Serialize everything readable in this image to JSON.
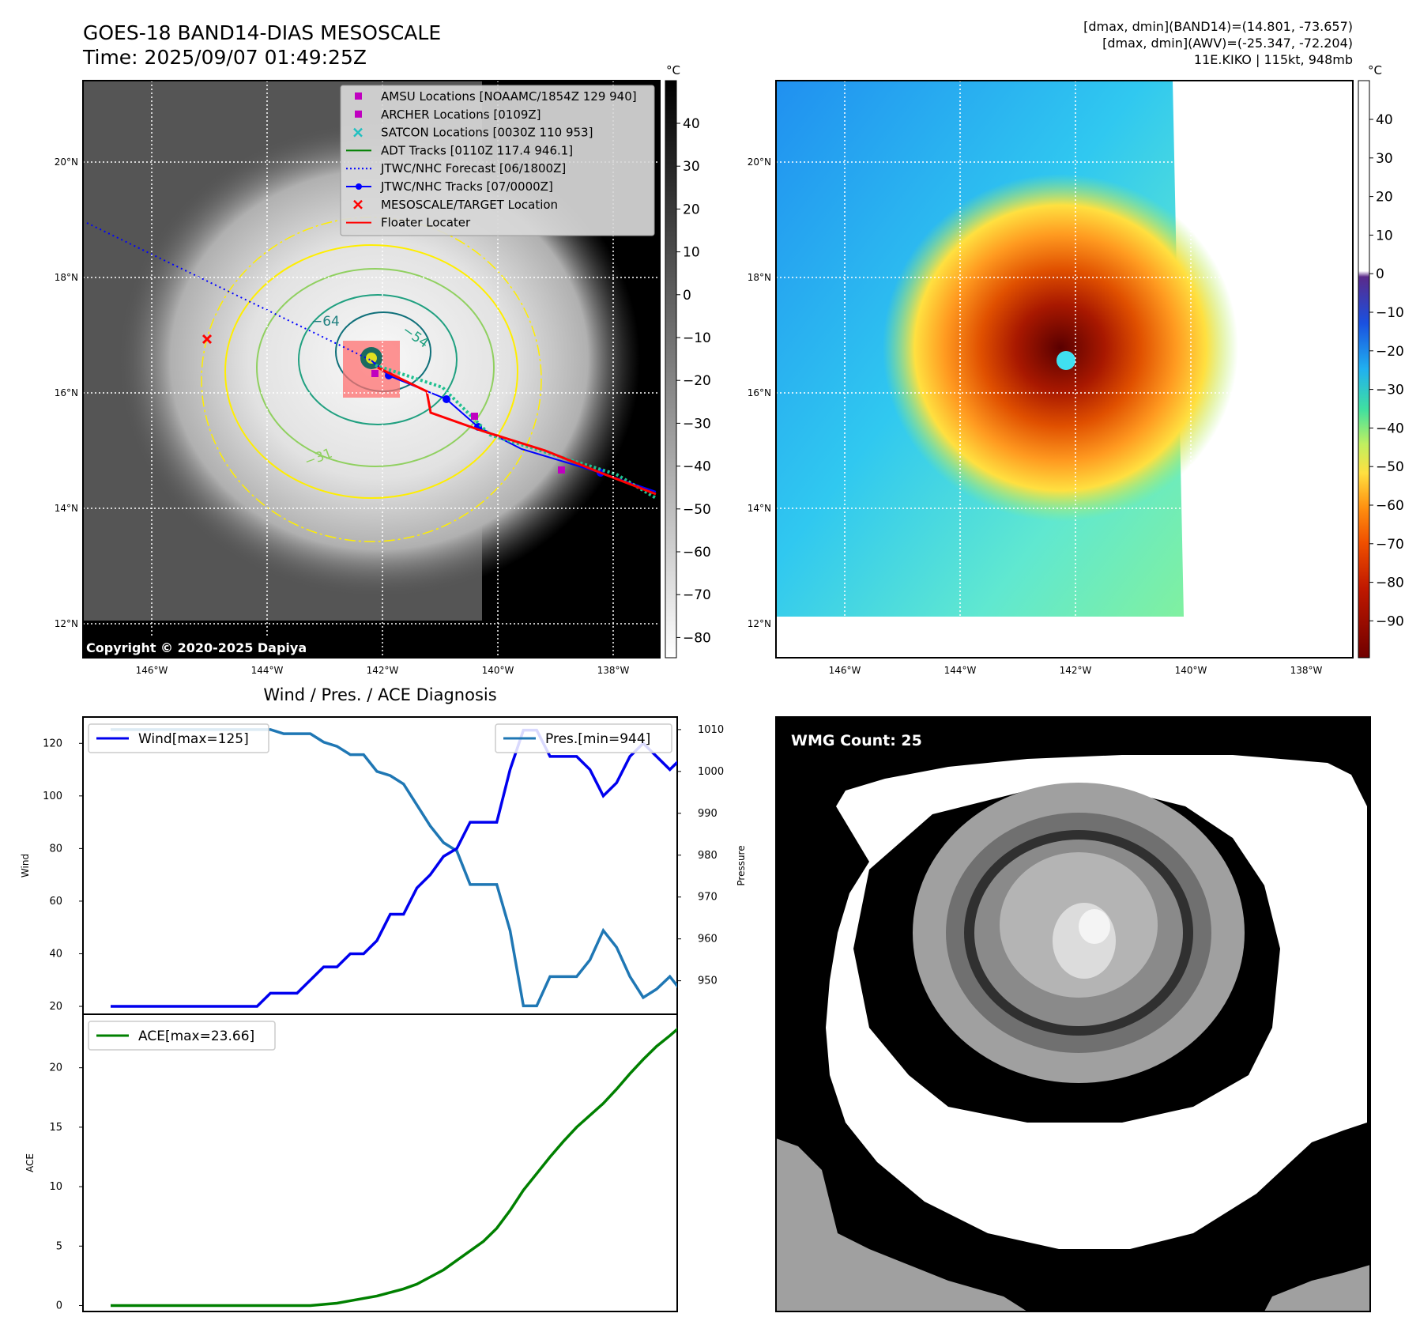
{
  "header": {
    "title_line1": "GOES-18 BAND14-DIAS MESOSCALE",
    "title_line2": "Time: 2025/09/07 01:49:25Z",
    "stats_line1": "[dmax, dmin](BAND14)=(14.801, -73.657)",
    "stats_line2": "[dmax, dmin](AWV)=(-25.347, -72.204)",
    "stats_line3": "11E.KIKO | 115kt, 948mb"
  },
  "copyright": "Copyright © 2020-2025 Dapiya",
  "maps": {
    "lat_ticks": [
      "20°N",
      "18°N",
      "16°N",
      "14°N",
      "12°N"
    ],
    "lon_ticks": [
      "146°W",
      "144°W",
      "142°W",
      "140°W",
      "138°W"
    ],
    "colorbar_unit": "°C",
    "ir_colorbar_ticks": [
      "40",
      "30",
      "20",
      "10",
      "0",
      "−10",
      "−20",
      "−30",
      "−40",
      "−50",
      "−60",
      "−70",
      "−80"
    ],
    "awv_colorbar_ticks": [
      "40",
      "30",
      "20",
      "10",
      "0",
      "−10",
      "−20",
      "−30",
      "−40",
      "−50",
      "−60",
      "−70",
      "−80",
      "−90"
    ],
    "contour_labels": [
      "−64",
      "−54",
      "−31"
    ],
    "legend": [
      {
        "label": "AMSU Locations [NOAAMC/1854Z 129 940]",
        "color": "#c000c0",
        "marker": "square"
      },
      {
        "label": "ARCHER Locations [0109Z]",
        "color": "#c000c0",
        "marker": "square"
      },
      {
        "label": "SATCON Locations [0030Z 110 953]",
        "color": "#20c0c0",
        "marker": "x"
      },
      {
        "label": "ADT Tracks [0110Z 117.4 946.1]",
        "color": "#008000",
        "marker": "line"
      },
      {
        "label": "JTWC/NHC Forecast [06/1800Z]",
        "color": "#0000ff",
        "marker": "dotted"
      },
      {
        "label": "JTWC/NHC Tracks [07/0000Z]",
        "color": "#0000ff",
        "marker": "line-dot"
      },
      {
        "label": "MESOSCALE/TARGET Location",
        "color": "#ff0000",
        "marker": "x"
      },
      {
        "label": "Floater Locater",
        "color": "#ff0000",
        "marker": "line"
      }
    ]
  },
  "wmg": {
    "label": "WMG Count: 25"
  },
  "chart_data": [
    {
      "type": "line",
      "title": "Wind / Pres. / ACE Diagnosis",
      "ylabel": "Wind",
      "ylabel_right": "Pressure",
      "ylim": [
        17,
        130
      ],
      "ylim_right": [
        942,
        1013
      ],
      "yticks": [
        20,
        40,
        60,
        80,
        100,
        120
      ],
      "yticks_right": [
        950,
        960,
        970,
        980,
        990,
        1000,
        1010
      ],
      "x": [
        0,
        1,
        2,
        3,
        4,
        5,
        6,
        7,
        8,
        9,
        10,
        11,
        12,
        13,
        14,
        15,
        16,
        17,
        18,
        19,
        20,
        21,
        22,
        23,
        24,
        25,
        26,
        27,
        28,
        29,
        30,
        31,
        32,
        33,
        34,
        35,
        36,
        37,
        38,
        39,
        40,
        41,
        42,
        43
      ],
      "series": [
        {
          "name": "Wind[max=125]",
          "axis": "left",
          "color": "#0000ee",
          "values": [
            20,
            20,
            20,
            20,
            20,
            20,
            20,
            20,
            20,
            20,
            20,
            20,
            25,
            25,
            25,
            30,
            35,
            35,
            40,
            40,
            45,
            55,
            55,
            65,
            70,
            77,
            80,
            90,
            90,
            90,
            110,
            125,
            125,
            115,
            115,
            115,
            110,
            100,
            105,
            115,
            120,
            115,
            110,
            115
          ]
        },
        {
          "name": "Pres.[min=944]",
          "axis": "right",
          "color": "#1f77b4",
          "values": [
            1010,
            1010,
            1010,
            1010,
            1010,
            1010,
            1010,
            1010,
            1010,
            1010,
            1010,
            1010,
            1010,
            1009,
            1009,
            1009,
            1007,
            1006,
            1004,
            1004,
            1000,
            999,
            997,
            992,
            987,
            983,
            981,
            973,
            973,
            973,
            962,
            944,
            944,
            951,
            951,
            951,
            955,
            962,
            958,
            951,
            946,
            948,
            951,
            947
          ]
        }
      ]
    },
    {
      "type": "line",
      "ylabel": "ACE",
      "ylim": [
        -0.5,
        24.5
      ],
      "yticks": [
        0,
        5,
        10,
        15,
        20
      ],
      "x": [
        0,
        1,
        2,
        3,
        4,
        5,
        6,
        7,
        8,
        9,
        10,
        11,
        12,
        13,
        14,
        15,
        16,
        17,
        18,
        19,
        20,
        21,
        22,
        23,
        24,
        25,
        26,
        27,
        28,
        29,
        30,
        31,
        32,
        33,
        34,
        35,
        36,
        37,
        38,
        39,
        40,
        41,
        42,
        43
      ],
      "series": [
        {
          "name": "ACE[max=23.66]",
          "color": "#008000",
          "values": [
            0,
            0,
            0,
            0,
            0,
            0,
            0,
            0,
            0,
            0,
            0,
            0,
            0,
            0,
            0,
            0,
            0.1,
            0.2,
            0.4,
            0.6,
            0.8,
            1.1,
            1.4,
            1.8,
            2.4,
            3.0,
            3.8,
            4.6,
            5.4,
            6.5,
            8.0,
            9.7,
            11.1,
            12.5,
            13.8,
            15.0,
            16.0,
            17.0,
            18.2,
            19.5,
            20.7,
            21.8,
            22.7,
            23.66
          ]
        }
      ]
    }
  ]
}
